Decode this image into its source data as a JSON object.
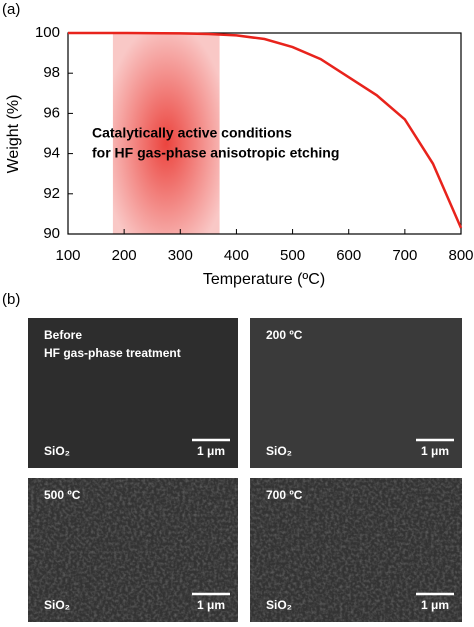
{
  "chart_data": {
    "type": "line",
    "panel_label": "(a)",
    "xlabel": "Temperature (ºC)",
    "ylabel": "Weight (%)",
    "x": [
      100,
      200,
      300,
      350,
      400,
      450,
      500,
      550,
      600,
      650,
      700,
      750,
      800
    ],
    "series": [
      {
        "name": "Weight",
        "color": "#e8231c",
        "values": [
          100,
          100,
          99.98,
          99.95,
          99.88,
          99.7,
          99.3,
          98.7,
          97.8,
          96.9,
          95.7,
          93.5,
          90.3
        ]
      }
    ],
    "xlim": [
      100,
      800
    ],
    "xticks": [
      100,
      200,
      300,
      400,
      500,
      600,
      700,
      800
    ],
    "ylim": [
      90,
      100
    ],
    "yticks": [
      90,
      92,
      94,
      96,
      98,
      100
    ],
    "highlight_range": [
      180,
      370
    ],
    "highlight_color": "#e8231c",
    "annotation": [
      "Catalytically active conditions",
      "for HF gas-phase anisotropic etching"
    ]
  },
  "sem": {
    "panel_label": "(b)",
    "images": [
      {
        "label": [
          "Before",
          "HF gas-phase treatment"
        ],
        "material": "SiO₂",
        "scale": "1 μm"
      },
      {
        "label": [
          "200 ºC"
        ],
        "material": "SiO₂",
        "scale": "1 μm"
      },
      {
        "label": [
          "500 ºC"
        ],
        "material": "SiO₂",
        "scale": "1 μm"
      },
      {
        "label": [
          "700 ºC"
        ],
        "material": "SiO₂",
        "scale": "1 μm"
      }
    ]
  }
}
